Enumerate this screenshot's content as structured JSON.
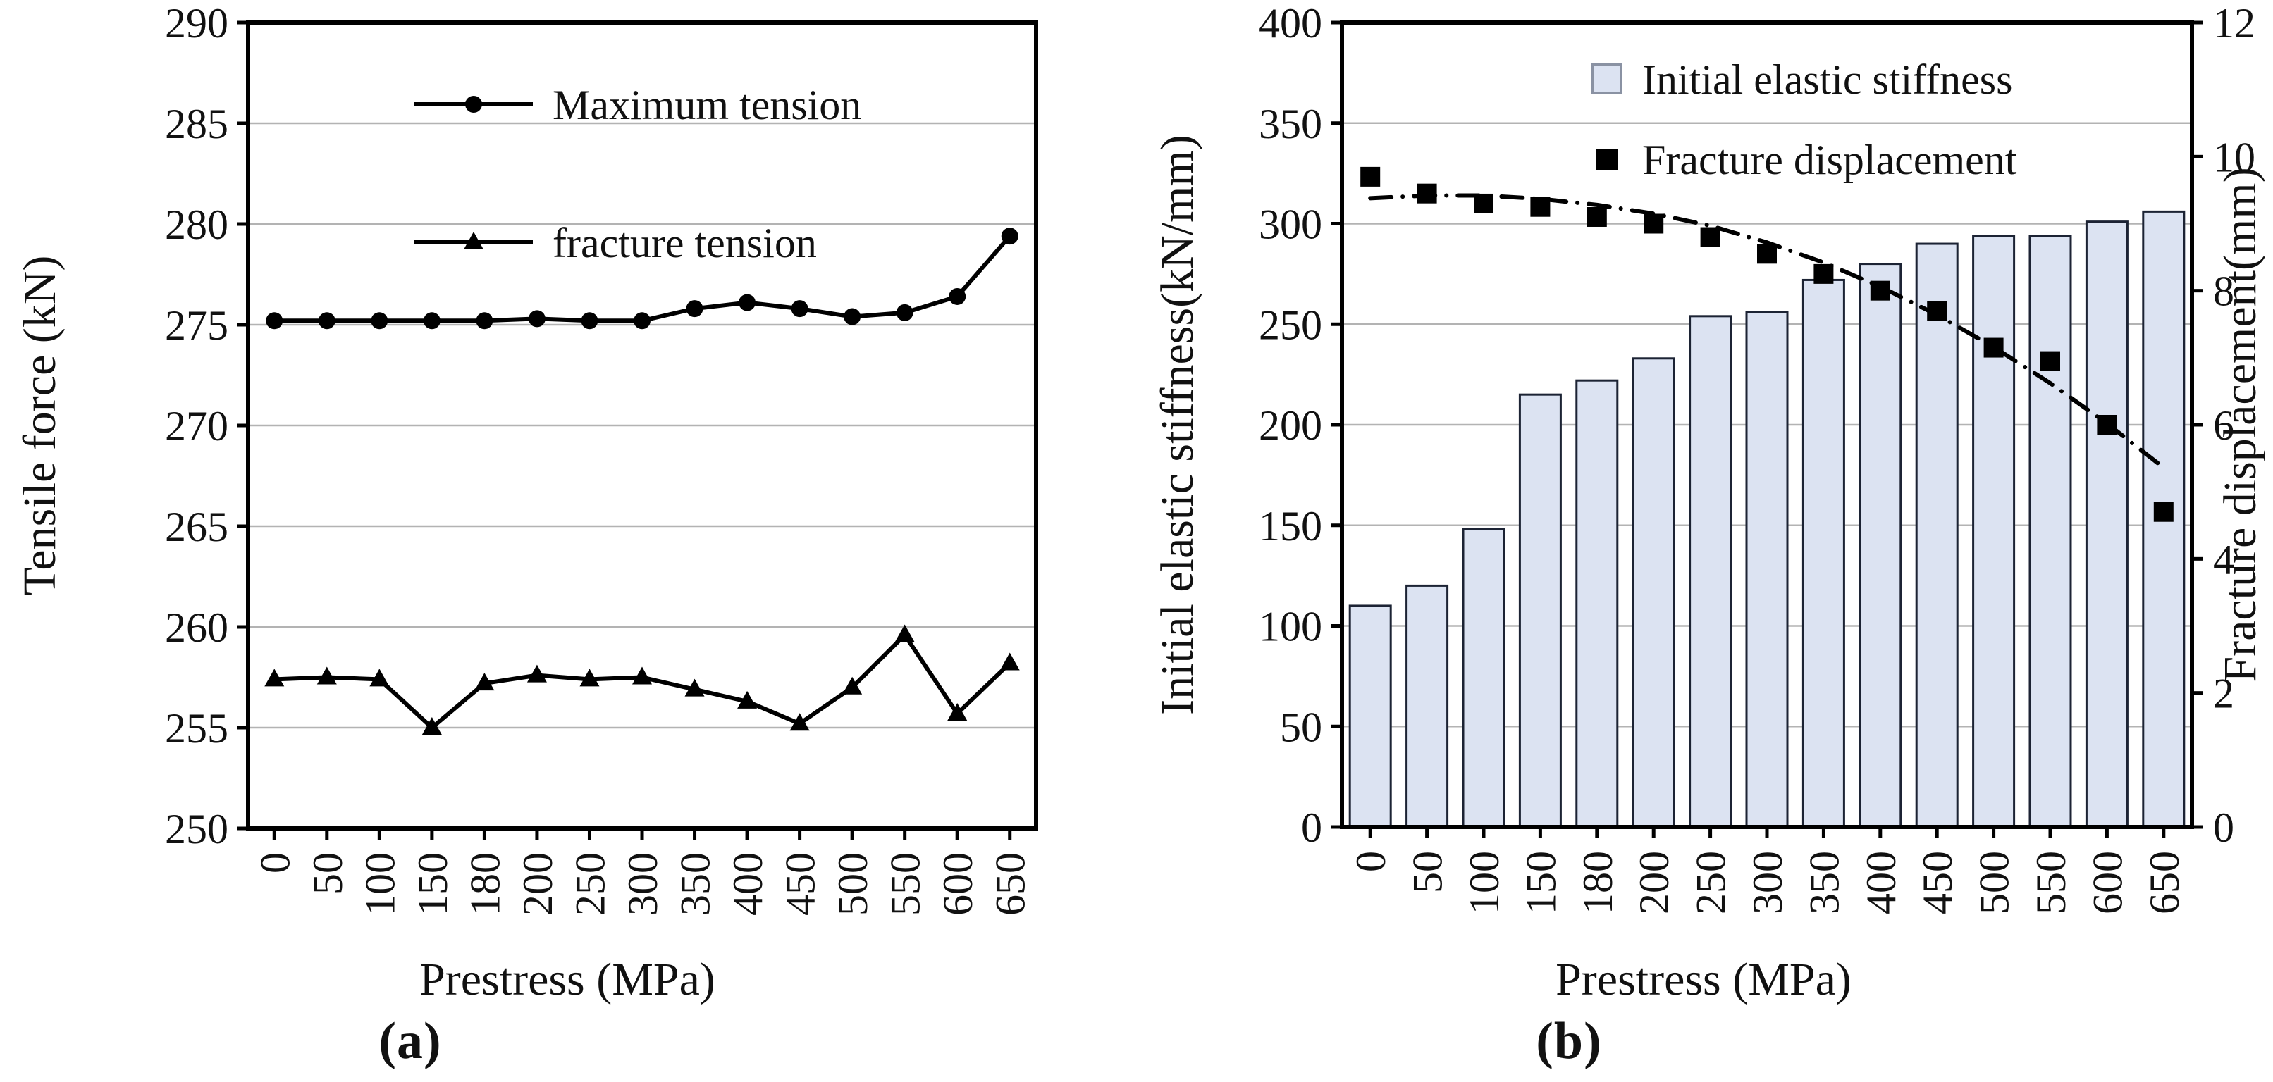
{
  "figure": {
    "background": "#ffffff"
  },
  "colors": {
    "bar_fill": "#dce3f2",
    "bar_stroke": "#1c2334",
    "grid": "#b3b3b3",
    "axis": "#000000",
    "series": "#000000"
  },
  "chart_data": [
    {
      "type": "line",
      "caption": "(a)",
      "xlabel": "Prestress (MPa)",
      "ylabel": "Tensile force (kN)",
      "ylim": [
        250,
        290
      ],
      "ytick_step": 5,
      "grid": true,
      "legend_position": "top-center-inside",
      "categories": [
        "0",
        "50",
        "100",
        "150",
        "180",
        "200",
        "250",
        "300",
        "350",
        "400",
        "450",
        "500",
        "550",
        "600",
        "650"
      ],
      "series": [
        {
          "name": "Maximum tension",
          "marker": "circle",
          "values": [
            275.2,
            275.2,
            275.2,
            275.2,
            275.2,
            275.3,
            275.2,
            275.2,
            275.8,
            276.1,
            275.8,
            275.4,
            275.6,
            276.4,
            279.4
          ]
        },
        {
          "name": "fracture tension",
          "marker": "triangle",
          "values": [
            257.4,
            257.5,
            257.4,
            255.0,
            257.2,
            257.6,
            257.4,
            257.5,
            256.9,
            256.3,
            255.2,
            257.0,
            259.6,
            255.7,
            258.2
          ]
        }
      ]
    },
    {
      "type": "bar-line",
      "caption": "(b)",
      "xlabel": "Prestress (MPa)",
      "ylabel_left": "Initial elastic stiffness(kN/mm)",
      "ylabel_right": "Fracture displacement(mm)",
      "ylim_left": [
        0,
        400
      ],
      "ytick_step_left": 50,
      "ylim_right": [
        0,
        12
      ],
      "ytick_step_right": 2,
      "grid": true,
      "legend_position": "top-center-inside",
      "categories": [
        "0",
        "50",
        "100",
        "150",
        "180",
        "200",
        "250",
        "300",
        "350",
        "400",
        "450",
        "500",
        "550",
        "600",
        "650"
      ],
      "bar_series": {
        "name": "Initial elastic stiffness",
        "axis": "left",
        "values": [
          110,
          120,
          148,
          215,
          222,
          233,
          254,
          256,
          272,
          280,
          290,
          294,
          294,
          301,
          306
        ]
      },
      "marker_series": {
        "name": "Fracture displacement",
        "axis": "right",
        "marker": "square",
        "values": [
          9.7,
          9.45,
          9.3,
          9.25,
          9.1,
          9.0,
          8.8,
          8.55,
          8.25,
          8.0,
          7.7,
          7.15,
          6.95,
          6.0,
          4.7
        ]
      },
      "trend_line": {
        "style": "dash-dot",
        "axis": "right",
        "values": [
          9.38,
          9.42,
          9.42,
          9.37,
          9.28,
          9.15,
          8.97,
          8.72,
          8.42,
          8.06,
          7.64,
          7.16,
          6.62,
          6.02,
          5.36
        ]
      }
    }
  ]
}
